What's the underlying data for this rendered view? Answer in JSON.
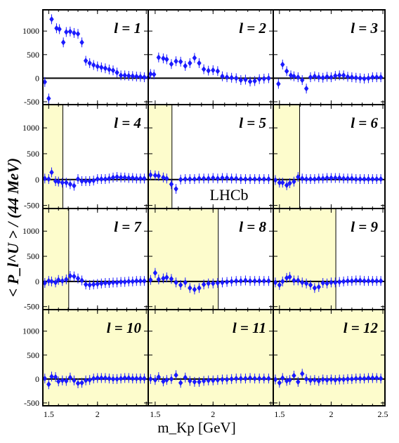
{
  "figure": {
    "ylabel": "< P_l^U > / (44 MeV)",
    "xlabel": "m_Kp [GeV]",
    "watermark": "LHCb",
    "ytick_labels": [
      "1000",
      "500",
      "0",
      "-500"
    ],
    "xtick_labels": [
      "1.5",
      "2",
      "1.5",
      "2",
      "1.5",
      "2",
      "2.5"
    ],
    "colors": {
      "marker": "#1a1aff",
      "shade": "#fdfccc",
      "zero_line": "#000000"
    }
  },
  "chart_data": [
    {
      "type": "scatter",
      "panel_label": "l = 1",
      "shade_xlim": null,
      "xlim": [
        1.44,
        2.52
      ],
      "ylim": [
        -560,
        1450
      ],
      "x": [
        1.46,
        1.5,
        1.53,
        1.58,
        1.61,
        1.65,
        1.68,
        1.72,
        1.76,
        1.8,
        1.84,
        1.88,
        1.92,
        1.96,
        2.0,
        2.04,
        2.08,
        2.12,
        2.16,
        2.2,
        2.24,
        2.28,
        2.32,
        2.36,
        2.4,
        2.44,
        2.48,
        2.52
      ],
      "y": [
        -80,
        -430,
        1250,
        1060,
        1040,
        760,
        980,
        990,
        960,
        940,
        760,
        370,
        320,
        280,
        250,
        230,
        210,
        185,
        165,
        120,
        60,
        60,
        50,
        45,
        35,
        30,
        20,
        15
      ]
    },
    {
      "type": "scatter",
      "panel_label": "l = 2",
      "shade_xlim": null,
      "xlim": [
        1.44,
        2.52
      ],
      "ylim": [
        -560,
        1450
      ],
      "x": [
        1.46,
        1.49,
        1.53,
        1.57,
        1.6,
        1.64,
        1.68,
        1.72,
        1.76,
        1.8,
        1.84,
        1.88,
        1.92,
        1.96,
        2.0,
        2.04,
        2.08,
        2.12,
        2.16,
        2.2,
        2.24,
        2.28,
        2.32,
        2.36,
        2.4,
        2.44,
        2.48
      ],
      "y": [
        90,
        80,
        440,
        420,
        400,
        300,
        360,
        350,
        260,
        320,
        430,
        320,
        190,
        160,
        170,
        150,
        40,
        20,
        10,
        0,
        -40,
        -30,
        -70,
        -60,
        -20,
        -10,
        0
      ]
    },
    {
      "type": "scatter",
      "panel_label": "l = 3",
      "shade_xlim": null,
      "xlim": [
        1.44,
        2.52
      ],
      "ylim": [
        -560,
        1450
      ],
      "x": [
        1.49,
        1.53,
        1.57,
        1.61,
        1.64,
        1.68,
        1.72,
        1.76,
        1.8,
        1.84,
        1.88,
        1.92,
        1.96,
        2.0,
        2.04,
        2.08,
        2.12,
        2.16,
        2.2,
        2.24,
        2.28,
        2.32,
        2.36,
        2.4,
        2.44,
        2.48
      ],
      "y": [
        -120,
        290,
        150,
        60,
        40,
        20,
        -40,
        -220,
        20,
        40,
        20,
        10,
        30,
        20,
        50,
        60,
        60,
        30,
        20,
        10,
        0,
        -10,
        0,
        20,
        20,
        20
      ]
    },
    {
      "type": "scatter",
      "panel_label": "l = 4",
      "shade_xlim": [
        1.44,
        1.645
      ],
      "xlim": [
        1.44,
        2.52
      ],
      "ylim": [
        -560,
        1450
      ],
      "x": [
        1.46,
        1.5,
        1.53,
        1.57,
        1.6,
        1.64,
        1.68,
        1.72,
        1.76,
        1.8,
        1.84,
        1.88,
        1.92,
        1.96,
        2.0,
        2.04,
        2.08,
        2.12,
        2.16,
        2.2,
        2.24,
        2.28,
        2.32,
        2.36,
        2.4,
        2.44,
        2.48
      ],
      "y": [
        20,
        10,
        140,
        -30,
        -40,
        -60,
        -60,
        -90,
        -120,
        10,
        -30,
        -30,
        -30,
        -20,
        10,
        10,
        10,
        20,
        40,
        50,
        40,
        40,
        30,
        30,
        20,
        20,
        20
      ]
    },
    {
      "type": "scatter",
      "panel_label": "l = 5",
      "shade_xlim": [
        1.44,
        1.645
      ],
      "xlim": [
        1.44,
        2.52
      ],
      "ylim": [
        -560,
        1450
      ],
      "x": [
        1.46,
        1.5,
        1.53,
        1.57,
        1.6,
        1.64,
        1.68,
        1.72,
        1.76,
        1.8,
        1.84,
        1.88,
        1.92,
        1.96,
        2.0,
        2.04,
        2.08,
        2.12,
        2.16,
        2.2,
        2.24,
        2.28,
        2.32,
        2.36,
        2.4,
        2.44,
        2.48
      ],
      "y": [
        90,
        80,
        70,
        40,
        20,
        -90,
        -180,
        0,
        10,
        10,
        10,
        20,
        20,
        20,
        30,
        20,
        30,
        30,
        20,
        20,
        10,
        10,
        10,
        10,
        10,
        10,
        10
      ]
    },
    {
      "type": "scatter",
      "panel_label": "l = 6",
      "shade_xlim": [
        1.44,
        1.695
      ],
      "xlim": [
        1.44,
        2.52
      ],
      "ylim": [
        -560,
        1450
      ],
      "x": [
        1.46,
        1.5,
        1.53,
        1.57,
        1.6,
        1.64,
        1.68,
        1.72,
        1.76,
        1.8,
        1.84,
        1.88,
        1.92,
        1.96,
        2.0,
        2.04,
        2.08,
        2.12,
        2.16,
        2.2,
        2.24,
        2.28,
        2.32,
        2.36,
        2.4,
        2.44,
        2.48
      ],
      "y": [
        -10,
        -60,
        -60,
        -110,
        -70,
        -40,
        50,
        20,
        10,
        10,
        10,
        20,
        20,
        30,
        30,
        30,
        30,
        20,
        20,
        20,
        10,
        10,
        10,
        10,
        10,
        10,
        10
      ]
    },
    {
      "type": "scatter",
      "panel_label": "l = 7",
      "shade_xlim": [
        1.44,
        1.705
      ],
      "xlim": [
        1.44,
        2.52
      ],
      "ylim": [
        -560,
        1450
      ],
      "x": [
        1.46,
        1.5,
        1.53,
        1.57,
        1.6,
        1.64,
        1.68,
        1.72,
        1.76,
        1.8,
        1.84,
        1.88,
        1.92,
        1.96,
        2.0,
        2.04,
        2.08,
        2.12,
        2.16,
        2.2,
        2.24,
        2.28,
        2.32,
        2.36,
        2.4,
        2.44,
        2.48
      ],
      "y": [
        -30,
        10,
        0,
        -20,
        30,
        10,
        40,
        110,
        100,
        60,
        20,
        -60,
        -70,
        -60,
        -50,
        -40,
        -30,
        -30,
        -20,
        -20,
        -10,
        -10,
        0,
        0,
        10,
        10,
        10
      ]
    },
    {
      "type": "scatter",
      "panel_label": "l = 8",
      "shade_xlim": [
        1.44,
        2.045
      ],
      "xlim": [
        1.44,
        2.52
      ],
      "ylim": [
        -560,
        1450
      ],
      "x": [
        1.46,
        1.5,
        1.53,
        1.57,
        1.6,
        1.64,
        1.68,
        1.72,
        1.76,
        1.8,
        1.84,
        1.88,
        1.92,
        1.96,
        2.0,
        2.04,
        2.08,
        2.12,
        2.16,
        2.2,
        2.24,
        2.28,
        2.32,
        2.36,
        2.4,
        2.44,
        2.48
      ],
      "y": [
        30,
        170,
        40,
        60,
        80,
        50,
        -20,
        -70,
        -20,
        -130,
        -160,
        -130,
        -60,
        -40,
        -40,
        -30,
        -20,
        -10,
        0,
        10,
        10,
        20,
        10,
        10,
        10,
        10,
        10
      ]
    },
    {
      "type": "scatter",
      "panel_label": "l = 9",
      "shade_xlim": [
        1.44,
        2.045
      ],
      "xlim": [
        1.44,
        2.52
      ],
      "ylim": [
        -560,
        1450
      ],
      "x": [
        1.46,
        1.5,
        1.53,
        1.57,
        1.6,
        1.64,
        1.68,
        1.72,
        1.76,
        1.8,
        1.84,
        1.88,
        1.92,
        1.96,
        2.0,
        2.04,
        2.08,
        2.12,
        2.16,
        2.2,
        2.24,
        2.28,
        2.32,
        2.36,
        2.4,
        2.44,
        2.48
      ],
      "y": [
        -20,
        -70,
        0,
        70,
        90,
        20,
        20,
        -20,
        -40,
        -70,
        -130,
        -110,
        -30,
        -40,
        -20,
        -20,
        -10,
        0,
        10,
        10,
        20,
        20,
        10,
        10,
        10,
        10,
        10
      ]
    },
    {
      "type": "scatter",
      "panel_label": "l = 10",
      "shade_xlim": [
        1.44,
        2.52
      ],
      "xlim": [
        1.44,
        2.52
      ],
      "ylim": [
        -560,
        1450
      ],
      "x": [
        1.46,
        1.5,
        1.53,
        1.57,
        1.6,
        1.64,
        1.68,
        1.72,
        1.76,
        1.8,
        1.84,
        1.88,
        1.92,
        1.96,
        2.0,
        2.04,
        2.08,
        2.12,
        2.16,
        2.2,
        2.24,
        2.28,
        2.32,
        2.36,
        2.4,
        2.44,
        2.48
      ],
      "y": [
        10,
        -110,
        50,
        40,
        -50,
        -30,
        -40,
        30,
        -30,
        -90,
        -80,
        -30,
        -20,
        10,
        20,
        20,
        20,
        10,
        0,
        0,
        10,
        20,
        20,
        10,
        10,
        10,
        10
      ]
    },
    {
      "type": "scatter",
      "panel_label": "l = 11",
      "shade_xlim": [
        1.44,
        2.52
      ],
      "xlim": [
        1.44,
        2.52
      ],
      "ylim": [
        -560,
        1450
      ],
      "x": [
        1.46,
        1.5,
        1.53,
        1.57,
        1.6,
        1.64,
        1.68,
        1.72,
        1.76,
        1.8,
        1.84,
        1.88,
        1.92,
        1.96,
        2.0,
        2.04,
        2.08,
        2.12,
        2.16,
        2.2,
        2.24,
        2.28,
        2.32,
        2.36,
        2.4,
        2.44,
        2.48
      ],
      "y": [
        0,
        -20,
        40,
        -50,
        -20,
        0,
        80,
        -80,
        30,
        -40,
        -60,
        -60,
        -40,
        -30,
        -30,
        -20,
        -10,
        -10,
        0,
        10,
        10,
        10,
        20,
        10,
        10,
        10,
        10
      ]
    },
    {
      "type": "scatter",
      "panel_label": "l = 12",
      "shade_xlim": [
        1.44,
        2.52
      ],
      "xlim": [
        1.44,
        2.52
      ],
      "ylim": [
        -560,
        1450
      ],
      "x": [
        1.46,
        1.5,
        1.53,
        1.57,
        1.6,
        1.64,
        1.68,
        1.72,
        1.76,
        1.8,
        1.84,
        1.88,
        1.92,
        1.96,
        2.0,
        2.04,
        2.08,
        2.12,
        2.16,
        2.2,
        2.24,
        2.28,
        2.32,
        2.36,
        2.4,
        2.44,
        2.48
      ],
      "y": [
        -10,
        -80,
        20,
        -40,
        -20,
        70,
        -60,
        110,
        0,
        -30,
        -20,
        -40,
        -10,
        -20,
        -10,
        -20,
        -10,
        -10,
        0,
        0,
        10,
        10,
        10,
        20,
        20,
        20,
        10
      ]
    }
  ]
}
